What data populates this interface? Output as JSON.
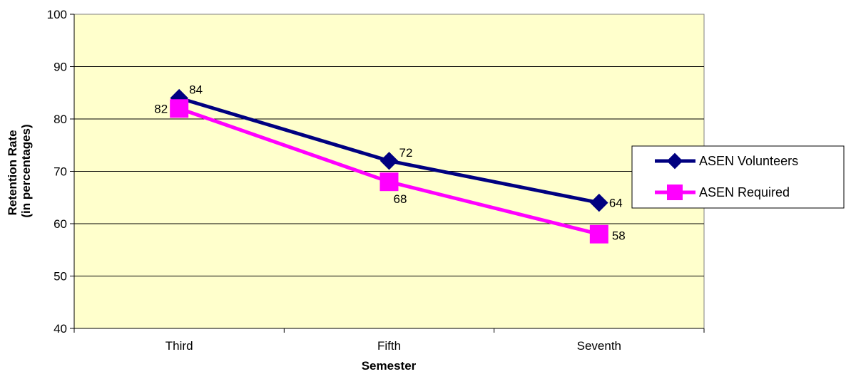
{
  "chart_data": {
    "type": "line",
    "categories": [
      "Third",
      "Fifth",
      "Seventh"
    ],
    "series": [
      {
        "name": "ASEN Volunteers",
        "values": [
          84,
          72,
          64
        ],
        "color": "#000080",
        "marker": "diamond"
      },
      {
        "name": "ASEN Required",
        "values": [
          82,
          68,
          58
        ],
        "color": "#FF00FF",
        "marker": "square"
      }
    ],
    "title": "",
    "xlabel": "Semester",
    "ylabel": [
      "Retention Rate",
      "(in percentages)"
    ],
    "ylim": [
      40,
      100
    ],
    "yticks": [
      40,
      50,
      60,
      70,
      80,
      90,
      100
    ],
    "grid": "horizontal",
    "legend_position": "right",
    "plot_background": "#FFFFCC"
  }
}
